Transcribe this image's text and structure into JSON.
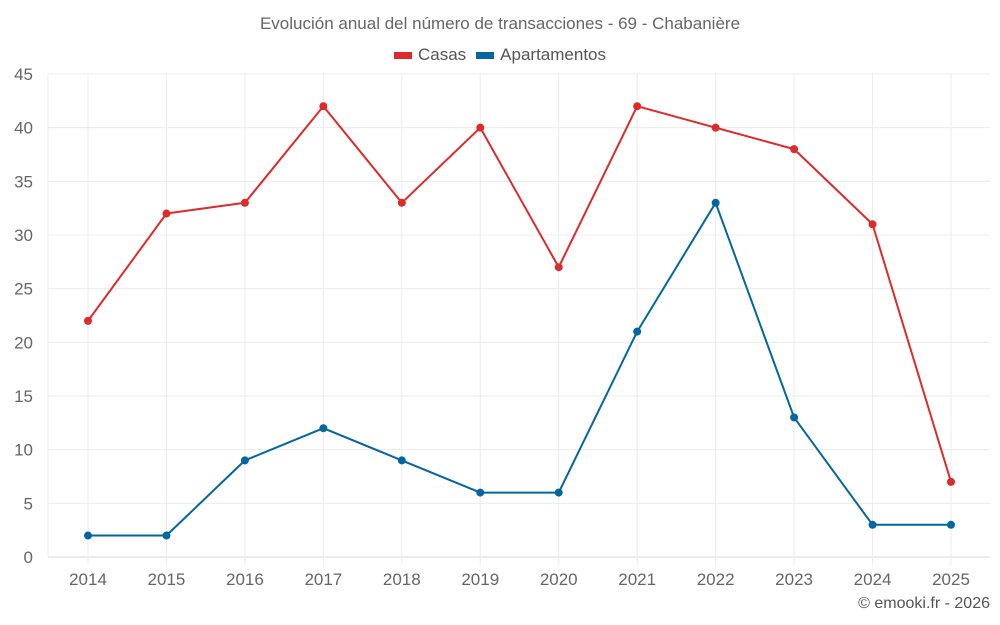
{
  "chart": {
    "title": "Evolución anual del número de transacciones - 69 - Chabanière",
    "credits": "© emooki.fr - 2026"
  },
  "legend": [
    {
      "label": "Casas",
      "color": "#dd2a2a"
    },
    {
      "label": "Apartamentos",
      "color": "#0266a1"
    }
  ],
  "chart_data": {
    "type": "line",
    "title": "Evolución anual del número de transacciones - 69 - Chabanière",
    "xlabel": "",
    "ylabel": "",
    "categories": [
      "2014",
      "2015",
      "2016",
      "2017",
      "2018",
      "2019",
      "2020",
      "2021",
      "2022",
      "2023",
      "2024",
      "2025"
    ],
    "series": [
      {
        "name": "Casas",
        "color": "#dd2a2a",
        "values": [
          22,
          32,
          33,
          42,
          33,
          40,
          27,
          42,
          40,
          38,
          31,
          7
        ]
      },
      {
        "name": "Apartamentos",
        "color": "#0266a1",
        "values": [
          2,
          2,
          9,
          12,
          9,
          6,
          6,
          21,
          33,
          13,
          3,
          3
        ]
      }
    ],
    "ylim": [
      0,
      45
    ],
    "yticks": [
      0,
      5,
      10,
      15,
      20,
      25,
      30,
      35,
      40,
      45
    ],
    "grid": true,
    "legend_position": "top"
  }
}
